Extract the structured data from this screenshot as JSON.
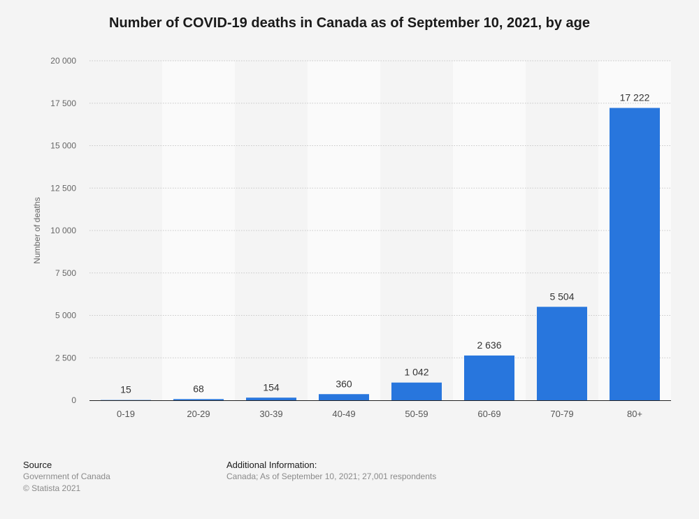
{
  "chart_data": {
    "type": "bar",
    "title": "Number of COVID-19 deaths in Canada as of September 10, 2021, by age",
    "xlabel": "",
    "ylabel": "Number of deaths",
    "ylim": [
      0,
      20000
    ],
    "yticks": [
      0,
      2500,
      5000,
      7500,
      10000,
      12500,
      15000,
      17500,
      20000
    ],
    "ytick_labels": [
      "0",
      "2 500",
      "5 000",
      "7 500",
      "10 000",
      "12 500",
      "15 000",
      "17 500",
      "20 000"
    ],
    "categories": [
      "0-19",
      "20-29",
      "30-39",
      "40-49",
      "50-59",
      "60-69",
      "70-79",
      "80+"
    ],
    "values": [
      15,
      68,
      154,
      360,
      1042,
      2636,
      5504,
      17222
    ],
    "value_labels": [
      "15",
      "68",
      "154",
      "360",
      "1 042",
      "2 636",
      "5 504",
      "17 222"
    ],
    "bar_color": "#2876dd",
    "grid": true
  },
  "footer": {
    "source_heading": "Source",
    "source_lines": [
      "Government of Canada",
      "© Statista 2021"
    ],
    "info_heading": "Additional Information:",
    "info_text": "Canada; As of September 10, 2021; 27,001 respondents"
  }
}
